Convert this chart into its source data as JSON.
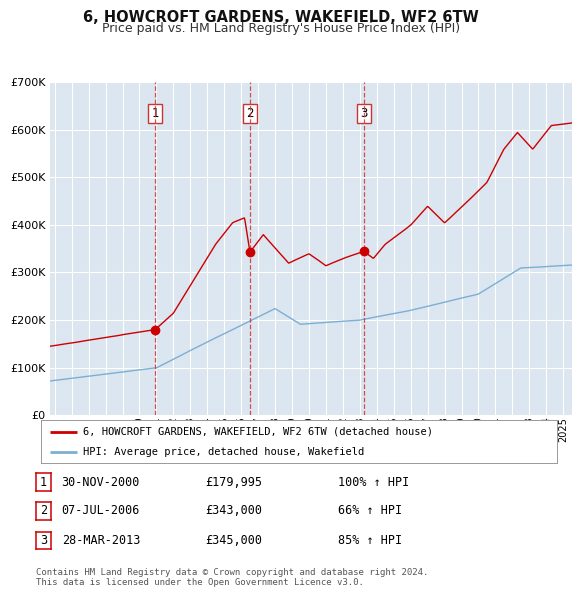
{
  "title": "6, HOWCROFT GARDENS, WAKEFIELD, WF2 6TW",
  "subtitle": "Price paid vs. HM Land Registry's House Price Index (HPI)",
  "background_color": "#ffffff",
  "plot_bg_color": "#dce6f0",
  "grid_color": "#ffffff",
  "red_line_color": "#cc0000",
  "blue_line_color": "#7bafd4",
  "sale_marker_color": "#cc0000",
  "vline_color": "#cc3333",
  "legend_label_red": "6, HOWCROFT GARDENS, WAKEFIELD, WF2 6TW (detached house)",
  "legend_label_blue": "HPI: Average price, detached house, Wakefield",
  "sales": [
    {
      "label": "1",
      "date": "2000-11-30",
      "price": 179995,
      "x": 2000.917
    },
    {
      "label": "2",
      "date": "2006-07-07",
      "price": 343000,
      "x": 2006.517
    },
    {
      "label": "3",
      "date": "2013-03-28",
      "price": 345000,
      "x": 2013.24
    }
  ],
  "sale_rows": [
    {
      "num": "1",
      "date": "30-NOV-2000",
      "price": "£179,995",
      "pct": "100% ↑ HPI"
    },
    {
      "num": "2",
      "date": "07-JUL-2006",
      "price": "£343,000",
      "pct": "66% ↑ HPI"
    },
    {
      "num": "3",
      "date": "28-MAR-2013",
      "price": "£345,000",
      "pct": "85% ↑ HPI"
    }
  ],
  "footer": "Contains HM Land Registry data © Crown copyright and database right 2024.\nThis data is licensed under the Open Government Licence v3.0.",
  "ylim": [
    0,
    700000
  ],
  "yticks": [
    0,
    100000,
    200000,
    300000,
    400000,
    500000,
    600000,
    700000
  ],
  "ytick_labels": [
    "£0",
    "£100K",
    "£200K",
    "£300K",
    "£400K",
    "£500K",
    "£600K",
    "£700K"
  ],
  "xlim_start": 1994.7,
  "xlim_end": 2025.5,
  "xtick_years": [
    1995,
    1996,
    1997,
    1998,
    1999,
    2000,
    2001,
    2002,
    2003,
    2004,
    2005,
    2006,
    2007,
    2008,
    2009,
    2010,
    2011,
    2012,
    2013,
    2014,
    2015,
    2016,
    2017,
    2018,
    2019,
    2020,
    2021,
    2022,
    2023,
    2024,
    2025
  ]
}
